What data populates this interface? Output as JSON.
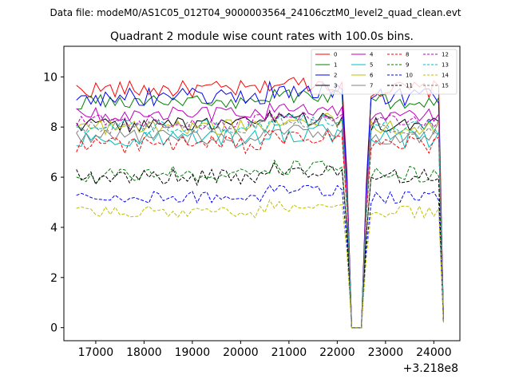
{
  "figure": {
    "suptitle": "Data file: modeM0/AS1C05_012T04_9000003564_24106cztM0_level2_quad_clean.evt"
  },
  "chart_data": {
    "type": "line",
    "title": "Quadrant 2 module wise count rates with 100.0s bins.",
    "xlabel": "",
    "ylabel": "",
    "x_offset_label": "+3.218e8",
    "x_offset": 321800000,
    "xlim": [
      16340,
      24540
    ],
    "ylim": [
      -0.52,
      11.22
    ],
    "x_ticks": [
      17000,
      18000,
      19000,
      20000,
      21000,
      22000,
      23000,
      24000
    ],
    "x_tick_labels": [
      "17000",
      "18000",
      "19000",
      "20000",
      "21000",
      "22000",
      "23000",
      "24000"
    ],
    "y_ticks": [
      0,
      2,
      4,
      6,
      8,
      10
    ],
    "y_tick_labels": [
      "0",
      "2",
      "4",
      "6",
      "8",
      "10"
    ],
    "grid": false,
    "legend_position": "upper right",
    "legend_columns": 4,
    "x_start": 16600,
    "bin_width": 100,
    "n_points": 77,
    "gap_points": [
      {
        "x": 22100,
        "dips": true
      },
      {
        "x": 22200,
        "factor": 0.65
      },
      {
        "x": 22300,
        "factor": 0.0
      },
      {
        "x": 22400,
        "factor": 0.0
      },
      {
        "x": 22500,
        "factor": 0.0
      },
      {
        "x": 22600,
        "factor": 0.6
      },
      {
        "x": 24200,
        "factor": 0.04
      }
    ],
    "series": [
      {
        "name": "0",
        "color": "#ff0000",
        "dash": "solid",
        "level": 9.5,
        "wiggle": 0.35
      },
      {
        "name": "1",
        "color": "#008000",
        "dash": "solid",
        "level": 9.0,
        "wiggle": 0.3
      },
      {
        "name": "2",
        "color": "#0000ff",
        "dash": "solid",
        "level": 9.2,
        "wiggle": 0.35
      },
      {
        "name": "3",
        "color": "#000000",
        "dash": "solid",
        "level": 8.1,
        "wiggle": 0.3
      },
      {
        "name": "4",
        "color": "#bf00bf",
        "dash": "solid",
        "level": 8.5,
        "wiggle": 0.3
      },
      {
        "name": "5",
        "color": "#00bfbf",
        "dash": "solid",
        "level": 7.5,
        "wiggle": 0.4
      },
      {
        "name": "6",
        "color": "#bfbf00",
        "dash": "solid",
        "level": 8.0,
        "wiggle": 0.3
      },
      {
        "name": "7",
        "color": "#808080",
        "dash": "solid",
        "level": 7.6,
        "wiggle": 0.3
      },
      {
        "name": "8",
        "color": "#ff0000",
        "dash": "dashed",
        "level": 7.3,
        "wiggle": 0.35
      },
      {
        "name": "9",
        "color": "#008000",
        "dash": "dashed",
        "level": 6.1,
        "wiggle": 0.35
      },
      {
        "name": "10",
        "color": "#0000ff",
        "dash": "dashed",
        "level": 5.2,
        "wiggle": 0.25
      },
      {
        "name": "11",
        "color": "#000000",
        "dash": "dashed",
        "level": 6.0,
        "wiggle": 0.35
      },
      {
        "name": "12",
        "color": "#bf00bf",
        "dash": "dashed",
        "level": 8.2,
        "wiggle": 0.3
      },
      {
        "name": "13",
        "color": "#00bfbf",
        "dash": "dashed",
        "level": 8.0,
        "wiggle": 0.3
      },
      {
        "name": "14",
        "color": "#bfbf00",
        "dash": "dashed",
        "level": 4.6,
        "wiggle": 0.25
      },
      {
        "name": "15",
        "color": "#808080",
        "dash": "dashed",
        "level": 8.0,
        "wiggle": 0.3
      }
    ],
    "gap_low_value": 0.0
  }
}
